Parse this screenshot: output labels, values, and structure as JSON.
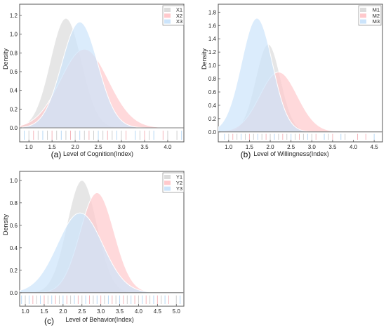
{
  "chart_data": [
    {
      "type": "area",
      "panel_label": "(a)",
      "xlabel": "Level of Cognition(Index)",
      "ylabel": "Density",
      "xlim": [
        0.8,
        4.35
      ],
      "ylim": [
        -0.15,
        1.32
      ],
      "xticks": [
        1.0,
        1.5,
        2.0,
        2.5,
        3.0,
        3.5,
        4.0
      ],
      "yticks": [
        0.0,
        0.2,
        0.4,
        0.6,
        0.8,
        1.0,
        1.2
      ],
      "legend": "top-right",
      "series": [
        {
          "name": "X1",
          "color": "#dcdcdc",
          "mean": 1.8,
          "sd": 0.34,
          "peak": 1.17
        },
        {
          "name": "X2",
          "color": "#ffc9cc",
          "mean": 2.2,
          "sd": 0.52,
          "peak": 0.84
        },
        {
          "name": "X3",
          "color": "#cce4fb",
          "mean": 2.1,
          "sd": 0.39,
          "peak": 1.13
        }
      ],
      "rug": [
        {
          "series": "X1",
          "values": [
            1.0,
            1.2,
            1.4,
            1.6,
            1.8,
            2.0,
            2.2,
            2.4,
            2.6,
            2.8,
            3.0,
            3.4,
            3.6,
            4.0,
            4.2
          ]
        },
        {
          "series": "X2",
          "values": [
            1.1,
            1.5,
            1.9,
            2.3,
            2.7,
            3.1,
            3.5,
            3.9
          ]
        },
        {
          "series": "X3",
          "values": [
            0.9,
            1.3,
            1.7,
            2.1,
            2.5,
            2.9,
            3.3,
            3.7,
            4.3
          ]
        }
      ]
    },
    {
      "type": "area",
      "panel_label": "(b)",
      "xlabel": "Level of Willingness(Index)",
      "ylabel": "Density",
      "xlim": [
        0.75,
        4.7
      ],
      "ylim": [
        -0.15,
        1.92
      ],
      "xticks": [
        1.0,
        1.5,
        2.0,
        2.5,
        3.0,
        3.5,
        4.0,
        4.5
      ],
      "yticks": [
        0.0,
        0.2,
        0.4,
        0.6,
        0.8,
        1.0,
        1.2,
        1.4,
        1.6,
        1.8
      ],
      "legend": "top-right",
      "series": [
        {
          "name": "M1",
          "color": "#dcdcdc",
          "mean": 1.95,
          "sd": 0.3,
          "peak": 1.32
        },
        {
          "name": "M2",
          "color": "#ffc9cc",
          "mean": 2.2,
          "sd": 0.45,
          "peak": 0.9
        },
        {
          "name": "M3",
          "color": "#cce4fb",
          "mean": 1.68,
          "sd": 0.37,
          "peak": 1.71
        }
      ],
      "rug": [
        {
          "series": "M1",
          "values": [
            1.0,
            1.2,
            1.4,
            1.6,
            1.8,
            2.0,
            2.2,
            2.4,
            2.6,
            2.8,
            3.0,
            3.4,
            3.8
          ]
        },
        {
          "series": "M2",
          "values": [
            1.1,
            1.5,
            1.9,
            2.3,
            2.7,
            3.1,
            3.5,
            4.1,
            4.3
          ]
        },
        {
          "series": "M3",
          "values": [
            0.9,
            1.3,
            1.7,
            2.1,
            2.5,
            2.9,
            3.3,
            3.7,
            4.5
          ]
        }
      ]
    },
    {
      "type": "area",
      "panel_label": "(c)",
      "xlabel": "Level of Behavior(Index)",
      "ylabel": "Density",
      "xlim": [
        0.85,
        5.2
      ],
      "ylim": [
        -0.12,
        1.08
      ],
      "xticks": [
        1.0,
        1.5,
        2.0,
        2.5,
        3.0,
        3.5,
        4.0,
        4.5,
        5.0
      ],
      "yticks": [
        0.0,
        0.2,
        0.4,
        0.6,
        0.8,
        1.0
      ],
      "legend": "top-right",
      "series": [
        {
          "name": "Y1",
          "color": "#dcdcdc",
          "mean": 2.5,
          "sd": 0.4,
          "peak": 1.0
        },
        {
          "name": "Y2",
          "color": "#ffc9cc",
          "mean": 2.9,
          "sd": 0.45,
          "peak": 0.89
        },
        {
          "name": "Y3",
          "color": "#cce4fb",
          "mean": 2.45,
          "sd": 0.6,
          "peak": 0.71
        }
      ],
      "rug": [
        {
          "series": "Y1",
          "values": [
            1.0,
            1.3,
            1.6,
            1.9,
            2.2,
            2.5,
            2.8,
            3.1,
            3.4,
            3.7,
            4.0,
            4.3,
            4.6,
            5.0
          ]
        },
        {
          "series": "Y2",
          "values": [
            1.2,
            1.5,
            1.8,
            2.1,
            2.4,
            2.7,
            3.0,
            3.3,
            3.6,
            3.9,
            4.2,
            4.5,
            4.8
          ]
        },
        {
          "series": "Y3",
          "values": [
            0.9,
            1.1,
            1.4,
            1.7,
            2.0,
            2.3,
            2.6,
            2.9,
            3.2,
            3.5,
            3.8,
            4.1,
            4.4,
            4.7,
            5.1
          ]
        }
      ]
    }
  ]
}
